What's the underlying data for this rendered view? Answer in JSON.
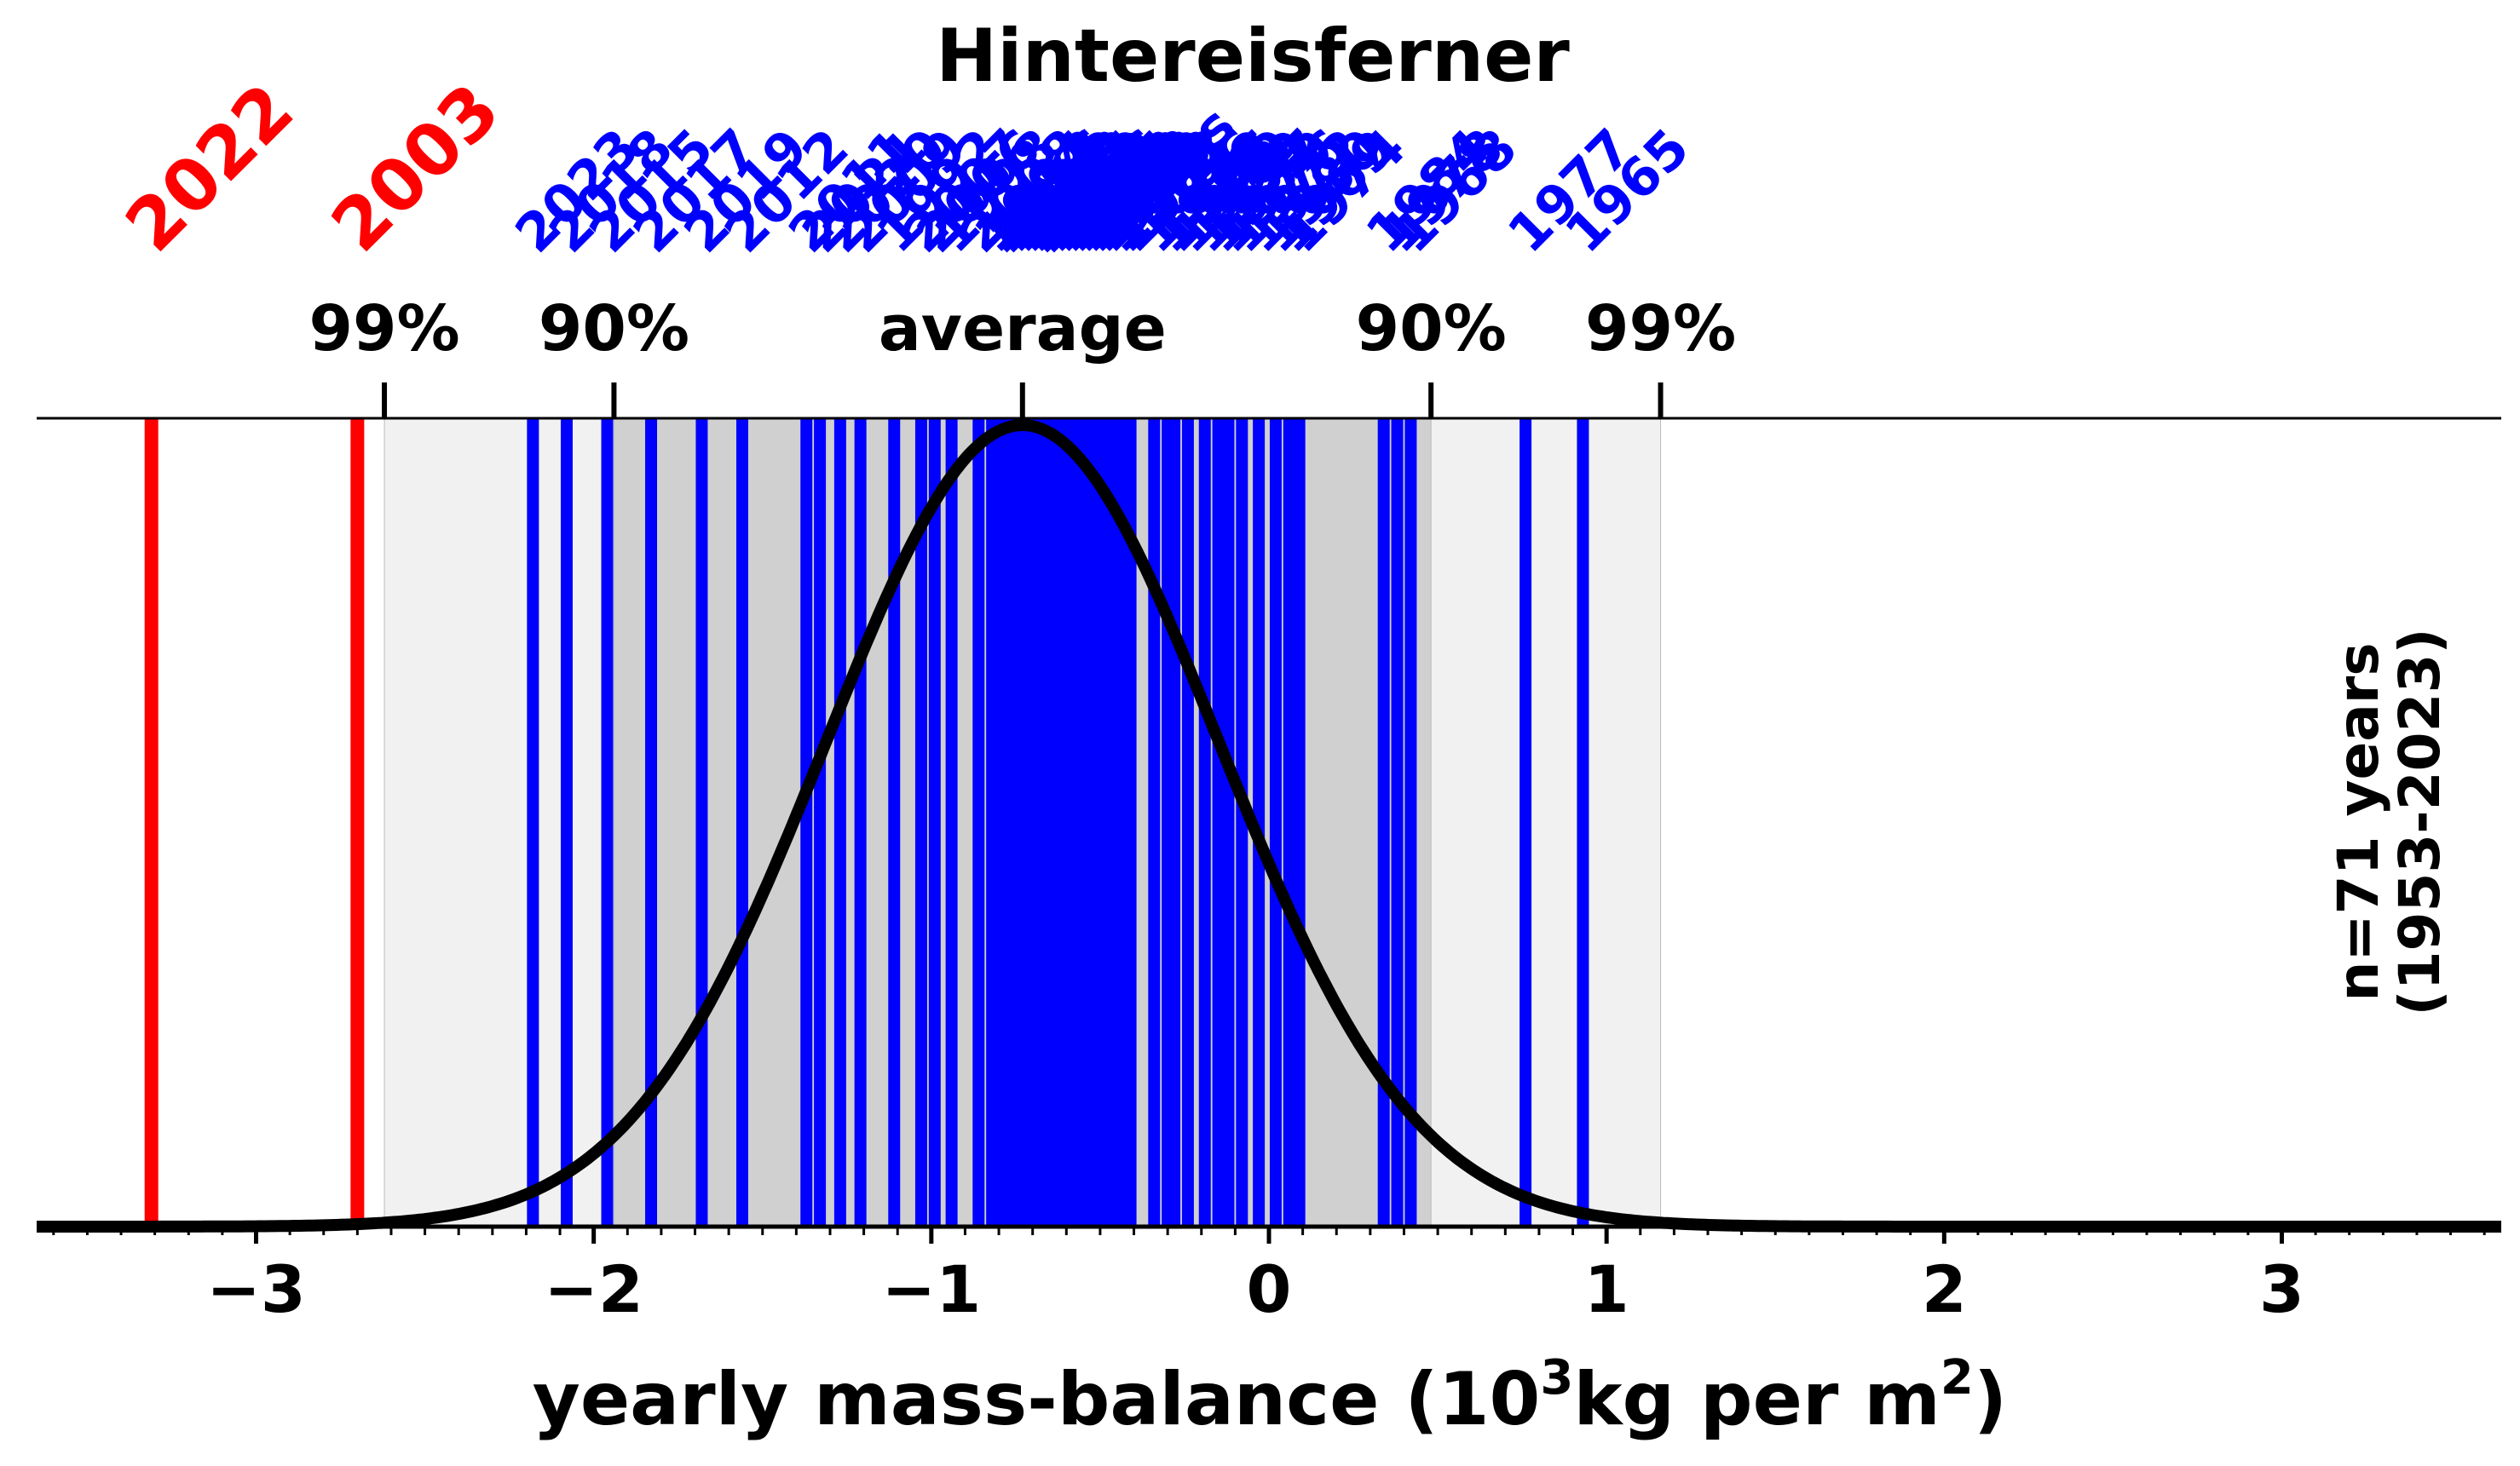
{
  "chart_data": {
    "type": "strip-distribution",
    "title": "Hintereisferner",
    "xlabel_main": "yearly mass-balance (10",
    "xlabel_sup": "3",
    "xlabel_mid": "kg per m",
    "xlabel_sup2": "2",
    "xlabel_end": ")",
    "side_label_line1": "n=71 years",
    "side_label_line2": "(1953-2023)",
    "xlim": [
      -3.65,
      3.65
    ],
    "xticks": [
      {
        "value": -3,
        "label": "−3"
      },
      {
        "value": -2,
        "label": "−2"
      },
      {
        "value": -1,
        "label": "−1"
      },
      {
        "value": 0,
        "label": "0"
      },
      {
        "value": 1,
        "label": "1"
      },
      {
        "value": 2,
        "label": "2"
      },
      {
        "value": 3,
        "label": "3"
      }
    ],
    "mean": -0.73,
    "std": 0.58,
    "colors": {
      "normal": "#0000ff",
      "extreme": "#ff0000",
      "curve": "#000000",
      "band90": "#d0d0d0",
      "band99": "#f1f1f1"
    },
    "top_markers": [
      {
        "value": -2.62,
        "label": "99%"
      },
      {
        "value": -1.94,
        "label": "90%"
      },
      {
        "value": -0.73,
        "label": "average"
      },
      {
        "value": 0.48,
        "label": "90%"
      },
      {
        "value": 1.16,
        "label": "99%"
      }
    ],
    "bands": [
      {
        "from": -2.62,
        "to": 1.16,
        "kind": "band99"
      },
      {
        "from": -1.94,
        "to": 0.48,
        "kind": "band90"
      }
    ],
    "extreme_years": [
      {
        "year": "2022",
        "value": -3.31
      },
      {
        "year": "2003",
        "value": -2.7
      }
    ],
    "years": [
      {
        "year": "2023",
        "value": -2.18
      },
      {
        "year": "2018",
        "value": -2.08
      },
      {
        "year": "2015",
        "value": -1.96
      },
      {
        "year": "2017",
        "value": -1.83
      },
      {
        "year": "2019",
        "value": -1.68
      },
      {
        "year": "2012",
        "value": -1.56
      },
      {
        "year": "2011",
        "value": -1.37
      },
      {
        "year": "2021",
        "value": -1.33
      },
      {
        "year": "2020",
        "value": -1.27
      },
      {
        "year": "2009",
        "value": -1.21
      },
      {
        "year": "1992",
        "value": -1.11
      },
      {
        "year": "2007",
        "value": -1.03
      },
      {
        "year": "2006",
        "value": -0.99
      },
      {
        "year": "1998",
        "value": -0.94
      },
      {
        "year": "2008",
        "value": -0.86
      },
      {
        "year": "1994",
        "value": -0.82
      },
      {
        "year": "2013",
        "value": -0.8
      },
      {
        "year": "2016",
        "value": -0.78
      },
      {
        "year": "1991",
        "value": -0.76
      },
      {
        "year": "1990",
        "value": -0.74
      },
      {
        "year": "1983",
        "value": -0.72
      },
      {
        "year": "1982",
        "value": -0.7
      },
      {
        "year": "2004",
        "value": -0.68
      },
      {
        "year": "2000",
        "value": -0.66
      },
      {
        "year": "1999",
        "value": -0.64
      },
      {
        "year": "1986",
        "value": -0.62
      },
      {
        "year": "1971",
        "value": -0.6
      },
      {
        "year": "1964",
        "value": -0.58
      },
      {
        "year": "1963",
        "value": -0.56
      },
      {
        "year": "1962",
        "value": -0.54
      },
      {
        "year": "1958",
        "value": -0.52
      },
      {
        "year": "1993",
        "value": -0.5
      },
      {
        "year": "1950s",
        "value": -0.48
      },
      {
        "year": "1973",
        "value": -0.45
      },
      {
        "year": "1988",
        "value": -0.43
      },
      {
        "year": "1981",
        "value": -0.41
      },
      {
        "year": "1996",
        "value": -0.34
      },
      {
        "year": "1970",
        "value": -0.3
      },
      {
        "year": "1995",
        "value": -0.28
      },
      {
        "year": "1960",
        "value": -0.24
      },
      {
        "year": "1959",
        "value": -0.19
      },
      {
        "year": "1987",
        "value": -0.15
      },
      {
        "year": "1979",
        "value": -0.12
      },
      {
        "year": "1976",
        "value": -0.08
      },
      {
        "year": "1972",
        "value": -0.03
      },
      {
        "year": "1980",
        "value": 0.02
      },
      {
        "year": "1969",
        "value": 0.06
      },
      {
        "year": "1974",
        "value": 0.09
      },
      {
        "year": "1984",
        "value": 0.34
      },
      {
        "year": "1978",
        "value": 0.38
      },
      {
        "year": "1968",
        "value": 0.42
      },
      {
        "year": "1977",
        "value": 0.76
      },
      {
        "year": "1965",
        "value": 0.93
      }
    ]
  }
}
